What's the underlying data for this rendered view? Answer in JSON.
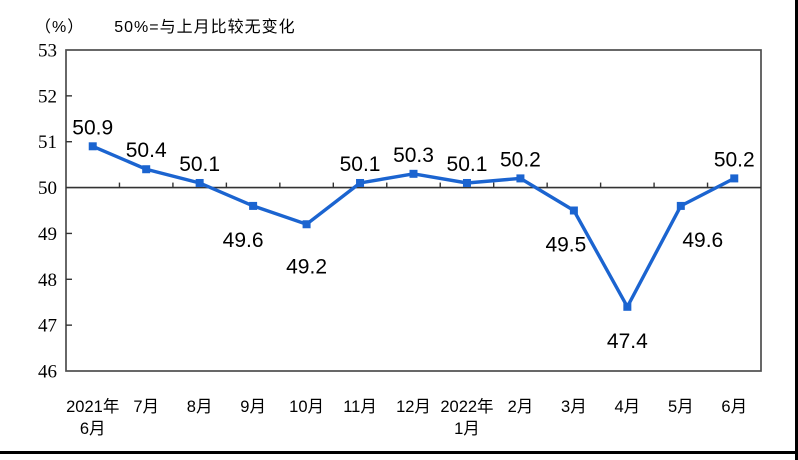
{
  "title": {
    "unit": "（%）",
    "note": "50%=与上月比较无变化"
  },
  "colors": {
    "line": "#1b64d0",
    "marker": "#1b64d0",
    "plot_border": "#4d4d4d",
    "baseline": "#333333",
    "text": "#000000",
    "frame": "#000000"
  },
  "chart_data": {
    "type": "line",
    "title": "50%=与上月比较无变化",
    "unit_label": "（%）",
    "x_labels": [
      [
        "2021年",
        "6月"
      ],
      [
        "7月"
      ],
      [
        "8月"
      ],
      [
        "9月"
      ],
      [
        "10月"
      ],
      [
        "11月"
      ],
      [
        "12月"
      ],
      [
        "2022年",
        "1月"
      ],
      [
        "2月"
      ],
      [
        "3月"
      ],
      [
        "4月"
      ],
      [
        "5月"
      ],
      [
        "6月"
      ]
    ],
    "values": [
      50.9,
      50.4,
      50.1,
      49.6,
      49.2,
      50.1,
      50.3,
      50.1,
      50.2,
      49.5,
      47.4,
      49.6,
      50.2
    ],
    "data_labels": [
      "50.9",
      "50.4",
      "50.1",
      "49.6",
      "49.2",
      "50.1",
      "50.3",
      "50.1",
      "50.2",
      "49.5",
      "47.4",
      "49.6",
      "50.2"
    ],
    "ylim": [
      46,
      53
    ],
    "y_ticks": [
      53,
      52,
      51,
      50,
      49,
      48,
      47,
      46
    ],
    "baseline_value": 50,
    "grid": "baseline-only",
    "legend": "none",
    "marker": "square"
  }
}
